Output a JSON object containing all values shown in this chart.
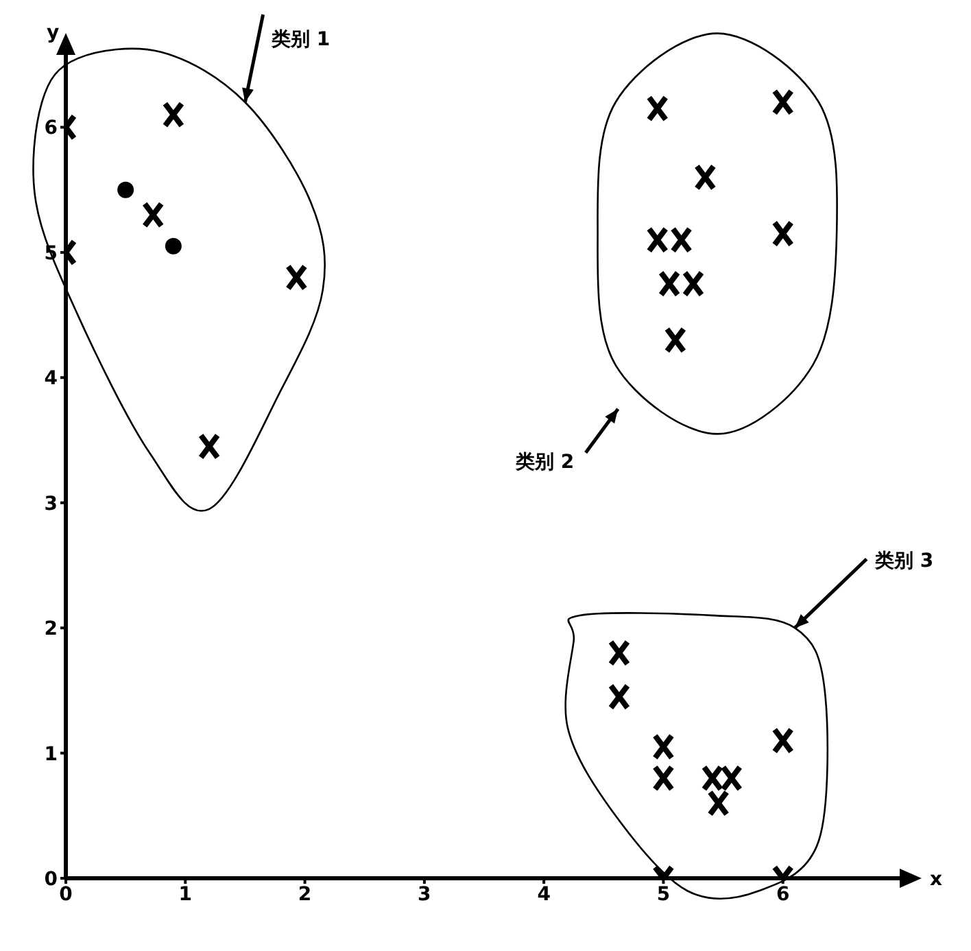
{
  "chart_data": {
    "type": "scatter",
    "xlabel": "x",
    "ylabel": "y",
    "xlim": [
      0,
      7
    ],
    "ylim": [
      0,
      6.6
    ],
    "xticks": [
      0,
      1,
      2,
      3,
      4,
      5,
      6
    ],
    "yticks": [
      0,
      1,
      2,
      3,
      4,
      5,
      6
    ],
    "grid": false,
    "legend": false,
    "annotations": [
      "类别 1",
      "类别 2",
      "类别 3"
    ],
    "series": [
      {
        "color": "#000000",
        "marker": "cross",
        "x": [
          0,
          0,
          0.9,
          0.73,
          1.93,
          1.2,
          4.95,
          6,
          5.35,
          4.95,
          5.15,
          5.05,
          5.25,
          5.1,
          6,
          4.63,
          4.63,
          5,
          5,
          5.41,
          5.57,
          5.46,
          6,
          5,
          6
        ],
        "values": [
          6,
          5,
          6.1,
          5.3,
          4.8,
          3.45,
          6.15,
          6.2,
          5.6,
          5.1,
          5.1,
          4.75,
          4.75,
          4.3,
          5.15,
          1.8,
          1.45,
          1.05,
          0.8,
          0.8,
          0.8,
          0.6,
          1.1,
          0,
          0
        ]
      },
      {
        "color": "#000000",
        "marker": "circle",
        "x": [
          0.5,
          0.9
        ],
        "values": [
          5.5,
          5.05
        ]
      }
    ]
  }
}
